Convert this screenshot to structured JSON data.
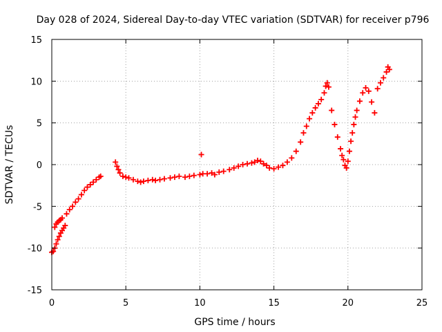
{
  "chart_data": {
    "type": "scatter",
    "title": "Day 028 of 2024, Sidereal Day-to-day VTEC variation (SDTVAR) for receiver p796",
    "xlabel": "GPS time / hours",
    "ylabel": "SDTVAR / TECUs",
    "xlim": [
      0,
      25
    ],
    "ylim": [
      -15,
      15
    ],
    "xticks": [
      0,
      5,
      10,
      15,
      20,
      25
    ],
    "yticks": [
      -15,
      -10,
      -5,
      0,
      5,
      10,
      15
    ],
    "xtick_labels": [
      "0",
      "5",
      "10",
      "15",
      "20",
      "25"
    ],
    "ytick_labels": [
      "-15",
      "-10",
      "-5",
      "0",
      "5",
      "10",
      "15"
    ],
    "grid": true,
    "marker": "+",
    "marker_color": "#ff0000",
    "series": [
      {
        "name": "SDTVAR",
        "x": [
          0.0,
          0.1,
          0.2,
          0.3,
          0.4,
          0.5,
          0.6,
          0.7,
          0.8,
          0.9,
          0.2,
          0.3,
          0.4,
          0.5,
          0.6,
          0.7,
          1.0,
          1.2,
          1.4,
          1.6,
          1.8,
          2.0,
          2.2,
          2.4,
          2.6,
          2.8,
          3.0,
          3.2,
          3.3,
          4.3,
          4.4,
          4.5,
          4.6,
          4.8,
          5.0,
          5.2,
          5.5,
          5.8,
          6.0,
          6.2,
          6.5,
          6.8,
          7.0,
          7.3,
          7.6,
          8.0,
          8.3,
          8.6,
          9.0,
          9.3,
          9.6,
          10.0,
          10.1,
          10.2,
          10.5,
          10.8,
          11.0,
          11.3,
          11.6,
          12.0,
          12.3,
          12.6,
          12.9,
          13.2,
          13.5,
          13.7,
          13.9,
          14.1,
          14.3,
          14.5,
          14.7,
          15.0,
          15.3,
          15.6,
          15.9,
          16.2,
          16.5,
          16.8,
          17.0,
          17.2,
          17.4,
          17.6,
          17.8,
          18.0,
          18.2,
          18.4,
          18.5,
          18.6,
          18.7,
          18.9,
          19.1,
          19.3,
          19.5,
          19.6,
          19.7,
          19.8,
          19.9,
          20.0,
          20.1,
          20.2,
          20.3,
          20.4,
          20.5,
          20.6,
          20.8,
          21.0,
          21.2,
          21.4,
          21.6,
          21.8,
          22.0,
          22.2,
          22.4,
          22.6,
          22.7,
          22.8
        ],
        "y": [
          -10.5,
          -10.4,
          -10.0,
          -9.5,
          -9.0,
          -8.6,
          -8.2,
          -7.9,
          -7.6,
          -7.3,
          -7.5,
          -7.1,
          -6.9,
          -6.7,
          -6.6,
          -6.4,
          -5.9,
          -5.4,
          -5.0,
          -4.5,
          -4.1,
          -3.6,
          -3.1,
          -2.7,
          -2.4,
          -2.1,
          -1.8,
          -1.5,
          -1.4,
          0.3,
          -0.2,
          -0.6,
          -1.0,
          -1.4,
          -1.5,
          -1.6,
          -1.8,
          -2.0,
          -2.1,
          -2.0,
          -1.9,
          -1.8,
          -1.9,
          -1.8,
          -1.7,
          -1.6,
          -1.5,
          -1.4,
          -1.5,
          -1.4,
          -1.3,
          -1.2,
          1.2,
          -1.1,
          -1.1,
          -1.0,
          -1.2,
          -0.9,
          -0.8,
          -0.6,
          -0.4,
          -0.2,
          0.0,
          0.1,
          0.2,
          0.3,
          0.5,
          0.4,
          0.1,
          -0.1,
          -0.4,
          -0.5,
          -0.3,
          -0.1,
          0.3,
          0.8,
          1.6,
          2.7,
          3.8,
          4.6,
          5.5,
          6.2,
          6.8,
          7.3,
          7.8,
          8.6,
          9.4,
          9.8,
          9.3,
          6.5,
          4.8,
          3.3,
          1.9,
          1.1,
          0.6,
          -0.1,
          -0.4,
          0.4,
          1.6,
          2.8,
          3.8,
          4.8,
          5.7,
          6.5,
          7.6,
          8.6,
          9.2,
          8.8,
          7.5,
          6.2,
          9.1,
          9.8,
          10.4,
          11.1,
          11.7,
          11.4
        ]
      }
    ]
  }
}
